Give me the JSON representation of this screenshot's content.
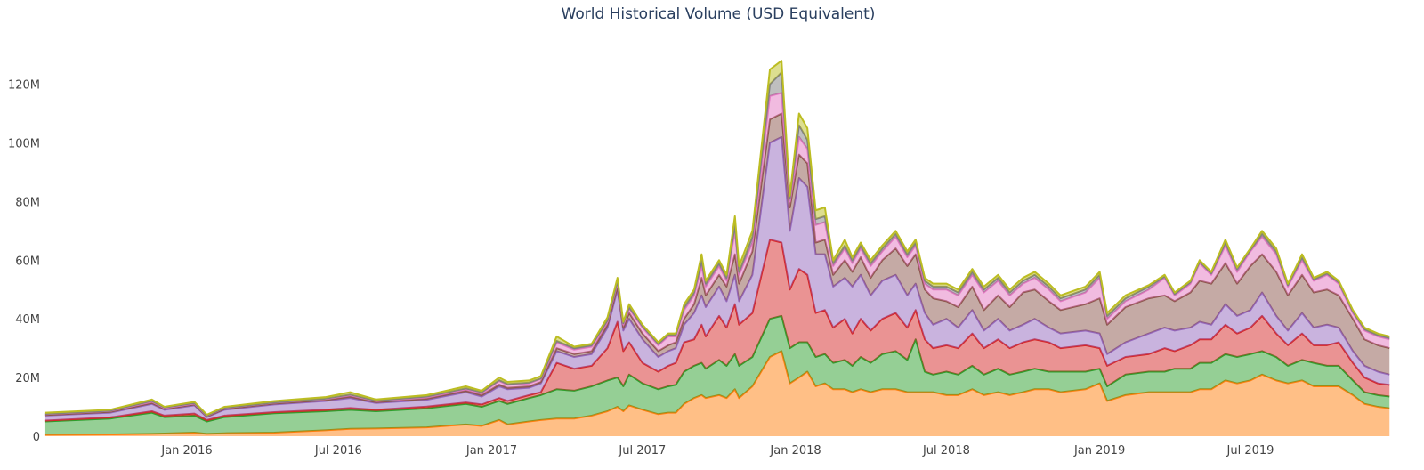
{
  "chart_data": {
    "type": "area",
    "stacked": true,
    "title": "World Historical Volume (USD Equivalent)",
    "xlabel": "",
    "ylabel": "",
    "xlim": [
      "2015-07-14",
      "2019-12-19"
    ],
    "ylim": [
      0,
      132000000
    ],
    "grid": false,
    "legend": "none",
    "y_ticks": [
      {
        "value": 0,
        "label": "0"
      },
      {
        "value": 20000000,
        "label": "20M"
      },
      {
        "value": 40000000,
        "label": "40M"
      },
      {
        "value": 60000000,
        "label": "60M"
      },
      {
        "value": 80000000,
        "label": "80M"
      },
      {
        "value": 100000000,
        "label": "100M"
      },
      {
        "value": 120000000,
        "label": "120M"
      }
    ],
    "x_ticks": [
      {
        "value": "2016-01-01",
        "label": "Jan 2016"
      },
      {
        "value": "2016-07-01",
        "label": "Jul 2016"
      },
      {
        "value": "2017-01-01",
        "label": "Jan 2017"
      },
      {
        "value": "2017-07-01",
        "label": "Jul 2017"
      },
      {
        "value": "2018-01-01",
        "label": "Jan 2018"
      },
      {
        "value": "2018-07-01",
        "label": "Jul 2018"
      },
      {
        "value": "2019-01-01",
        "label": "Jan 2019"
      },
      {
        "value": "2019-07-01",
        "label": "Jul 2019"
      }
    ],
    "unit": "millions USD",
    "series_colors": [
      "#ff7f0e",
      "#2ca02c",
      "#d62728",
      "#9467bd",
      "#8c564b",
      "#e377c2",
      "#7f7f7f",
      "#bcbd22"
    ],
    "series_order_note": "values per point listed bottom-to-top in stack order",
    "points": [
      {
        "x": "2015-07-15",
        "v": [
          0.5,
          4.5,
          0.3,
          1.7,
          0.2,
          0.3,
          0.1,
          0.4
        ]
      },
      {
        "x": "2015-10-01",
        "v": [
          0.6,
          5.4,
          0.4,
          1.6,
          0.3,
          0.3,
          0.1,
          0.3
        ]
      },
      {
        "x": "2015-11-20",
        "v": [
          0.8,
          7.2,
          0.5,
          2.5,
          0.3,
          0.5,
          0.2,
          0.5
        ]
      },
      {
        "x": "2015-12-05",
        "v": [
          0.9,
          5.6,
          0.5,
          2,
          0.3,
          0.3,
          0.2,
          0.2
        ]
      },
      {
        "x": "2016-01-10",
        "v": [
          1.2,
          5.8,
          0.7,
          2.8,
          0.3,
          0.3,
          0.2,
          0.4
        ]
      },
      {
        "x": "2016-01-25",
        "v": [
          0.8,
          4.2,
          0.5,
          1,
          0.2,
          0.2,
          0.1,
          0.3
        ]
      },
      {
        "x": "2016-02-15",
        "v": [
          1,
          5.5,
          0.5,
          2,
          0.3,
          0.3,
          0.1,
          0.3
        ]
      },
      {
        "x": "2016-04-15",
        "v": [
          1.2,
          6.6,
          0.4,
          2.6,
          0.3,
          0.3,
          0.1,
          0.5
        ]
      },
      {
        "x": "2016-06-15",
        "v": [
          2,
          6.5,
          0.5,
          3,
          0.3,
          0.4,
          0.1,
          0.5
        ]
      },
      {
        "x": "2016-07-15",
        "v": [
          2.5,
          6.5,
          0.6,
          3.4,
          0.5,
          0.5,
          0.2,
          0.8
        ]
      },
      {
        "x": "2016-08-15",
        "v": [
          2.6,
          5.9,
          0.5,
          2.3,
          0.3,
          0.4,
          0.1,
          0.4
        ]
      },
      {
        "x": "2016-10-15",
        "v": [
          3,
          6.5,
          0.6,
          2.3,
          0.4,
          0.5,
          0.2,
          0.5
        ]
      },
      {
        "x": "2016-12-01",
        "v": [
          4,
          7,
          0.5,
          3.5,
          0.5,
          0.5,
          0.3,
          0.7
        ]
      },
      {
        "x": "2016-12-20",
        "v": [
          3.5,
          6.5,
          0.8,
          2.7,
          0.5,
          0.7,
          0.3,
          0.5
        ]
      },
      {
        "x": "2017-01-10",
        "v": [
          5.5,
          6.5,
          1,
          4,
          0.6,
          1.2,
          0.3,
          0.9
        ]
      },
      {
        "x": "2017-01-20",
        "v": [
          4,
          7,
          1,
          4,
          0.5,
          1,
          0.3,
          0.7
        ]
      },
      {
        "x": "2017-02-15",
        "v": [
          5,
          8,
          1,
          2.5,
          0.5,
          1,
          0.3,
          0.7
        ]
      },
      {
        "x": "2017-03-01",
        "v": [
          5.5,
          8.5,
          1,
          3,
          0.5,
          1,
          0.2,
          0.8
        ]
      },
      {
        "x": "2017-03-20",
        "v": [
          6,
          10,
          9,
          4,
          1,
          2,
          0.5,
          1.5
        ]
      },
      {
        "x": "2017-04-10",
        "v": [
          6,
          9.5,
          7.5,
          4,
          1,
          1.5,
          0.5,
          0.5
        ]
      },
      {
        "x": "2017-05-01",
        "v": [
          7,
          10,
          7,
          4,
          1,
          1.5,
          0.5,
          0.5
        ]
      },
      {
        "x": "2017-05-20",
        "v": [
          8.5,
          10.5,
          11,
          7,
          1,
          1,
          0.5,
          1
        ]
      },
      {
        "x": "2017-06-01",
        "v": [
          10,
          10,
          19,
          11,
          1,
          1.5,
          0.5,
          1
        ]
      },
      {
        "x": "2017-06-08",
        "v": [
          8.5,
          8.5,
          12,
          7,
          1,
          1,
          0.5,
          0.5
        ]
      },
      {
        "x": "2017-06-15",
        "v": [
          10.5,
          10.5,
          11,
          8,
          2,
          1.5,
          0.5,
          1
        ]
      },
      {
        "x": "2017-07-01",
        "v": [
          9,
          9,
          7,
          8,
          2,
          2,
          0.5,
          0.5
        ]
      },
      {
        "x": "2017-07-20",
        "v": [
          7.5,
          8.5,
          6,
          5,
          2,
          2,
          0.5,
          0.5
        ]
      },
      {
        "x": "2017-08-01",
        "v": [
          8,
          9,
          7,
          5,
          2,
          3,
          0.5,
          0.5
        ]
      },
      {
        "x": "2017-08-10",
        "v": [
          8,
          9.5,
          7.5,
          5,
          2,
          2,
          0.5,
          0.5
        ]
      },
      {
        "x": "2017-08-20",
        "v": [
          11,
          11,
          10,
          6,
          2,
          3,
          1,
          1
        ]
      },
      {
        "x": "2017-09-01",
        "v": [
          13,
          11,
          9,
          9,
          3,
          3,
          1,
          1
        ]
      },
      {
        "x": "2017-09-10",
        "v": [
          14,
          11,
          13,
          10,
          6,
          4,
          2,
          2
        ]
      },
      {
        "x": "2017-09-15",
        "v": [
          13,
          10,
          11,
          10,
          4,
          3,
          1,
          1
        ]
      },
      {
        "x": "2017-10-01",
        "v": [
          14,
          12,
          15,
          10,
          4,
          3,
          1,
          1
        ]
      },
      {
        "x": "2017-10-10",
        "v": [
          13,
          11,
          13,
          9,
          5,
          2,
          1,
          1
        ]
      },
      {
        "x": "2017-10-20",
        "v": [
          16,
          12,
          17,
          10,
          7,
          8,
          2,
          3
        ]
      },
      {
        "x": "2017-10-25",
        "v": [
          13,
          11,
          14,
          8,
          6,
          3,
          1,
          2
        ]
      },
      {
        "x": "2017-11-10",
        "v": [
          17,
          10,
          15,
          13,
          8,
          3,
          2,
          2
        ]
      },
      {
        "x": "2017-12-01",
        "v": [
          27,
          13,
          27,
          33,
          8,
          8,
          4,
          5
        ]
      },
      {
        "x": "2017-12-15",
        "v": [
          29,
          12,
          25,
          36,
          8,
          7,
          7,
          4
        ]
      },
      {
        "x": "2017-12-25",
        "v": [
          18,
          12,
          20,
          20,
          8,
          2,
          1,
          1
        ]
      },
      {
        "x": "2018-01-05",
        "v": [
          20,
          12,
          25,
          31,
          8,
          6,
          4,
          4
        ]
      },
      {
        "x": "2018-01-15",
        "v": [
          22,
          10,
          23,
          30,
          8,
          5,
          3,
          4
        ]
      },
      {
        "x": "2018-01-25",
        "v": [
          17,
          10,
          15,
          20,
          4,
          6,
          2,
          3
        ]
      },
      {
        "x": "2018-02-05",
        "v": [
          18,
          10,
          15,
          19,
          5,
          6,
          2,
          3
        ]
      },
      {
        "x": "2018-02-15",
        "v": [
          16,
          9,
          12,
          14,
          4,
          3,
          1,
          1
        ]
      },
      {
        "x": "2018-03-01",
        "v": [
          16,
          10,
          14,
          14,
          6,
          4,
          1,
          2
        ]
      },
      {
        "x": "2018-03-10",
        "v": [
          15,
          9,
          11,
          16,
          5,
          3,
          1,
          1
        ]
      },
      {
        "x": "2018-03-20",
        "v": [
          16,
          11,
          13,
          15,
          6,
          3,
          1,
          1
        ]
      },
      {
        "x": "2018-04-01",
        "v": [
          15,
          10,
          11,
          12,
          6,
          4,
          1,
          1
        ]
      },
      {
        "x": "2018-04-15",
        "v": [
          16,
          12,
          12,
          13,
          7,
          3,
          1,
          1
        ]
      },
      {
        "x": "2018-05-01",
        "v": [
          16,
          13,
          13,
          13,
          9,
          4,
          1,
          1
        ]
      },
      {
        "x": "2018-05-15",
        "v": [
          15,
          11,
          11,
          11,
          10,
          3,
          1,
          1
        ]
      },
      {
        "x": "2018-05-25",
        "v": [
          15,
          18,
          10,
          9,
          10,
          3,
          1,
          1
        ]
      },
      {
        "x": "2018-06-05",
        "v": [
          15,
          7,
          11,
          9,
          8,
          2,
          1,
          1
        ]
      },
      {
        "x": "2018-06-15",
        "v": [
          15,
          6,
          9,
          8,
          9,
          3,
          1,
          1
        ]
      },
      {
        "x": "2018-07-01",
        "v": [
          14,
          8,
          9,
          9,
          6,
          4,
          1,
          1
        ]
      },
      {
        "x": "2018-07-15",
        "v": [
          14,
          7,
          9,
          7,
          7,
          4,
          1,
          1
        ]
      },
      {
        "x": "2018-08-01",
        "v": [
          16,
          8,
          11,
          8,
          8,
          4,
          1,
          1
        ]
      },
      {
        "x": "2018-08-15",
        "v": [
          14,
          7,
          9,
          6,
          7,
          6,
          1,
          1
        ]
      },
      {
        "x": "2018-09-01",
        "v": [
          15,
          8,
          10,
          7,
          8,
          5,
          1,
          1
        ]
      },
      {
        "x": "2018-09-15",
        "v": [
          14,
          7,
          9,
          6,
          8,
          4,
          1,
          1
        ]
      },
      {
        "x": "2018-10-01",
        "v": [
          15,
          7,
          10,
          6,
          11,
          3,
          1,
          1
        ]
      },
      {
        "x": "2018-10-15",
        "v": [
          16,
          7,
          10,
          7,
          10,
          4,
          1,
          1
        ]
      },
      {
        "x": "2018-11-01",
        "v": [
          16,
          6,
          10,
          5,
          9,
          4,
          1,
          1
        ]
      },
      {
        "x": "2018-11-15",
        "v": [
          15,
          7,
          8,
          5,
          8,
          3,
          1,
          1
        ]
      },
      {
        "x": "2018-12-15",
        "v": [
          16,
          6,
          9,
          5,
          9,
          4,
          1,
          1
        ]
      },
      {
        "x": "2019-01-01",
        "v": [
          18,
          5,
          7,
          5,
          12,
          7,
          1,
          1
        ]
      },
      {
        "x": "2019-01-10",
        "v": [
          12,
          5,
          7,
          4,
          10,
          2,
          1,
          1
        ]
      },
      {
        "x": "2019-02-01",
        "v": [
          14,
          7,
          6,
          5,
          12,
          2,
          1,
          1
        ]
      },
      {
        "x": "2019-03-01",
        "v": [
          15,
          7,
          6,
          7,
          12,
          3,
          1,
          0.5
        ]
      },
      {
        "x": "2019-03-20",
        "v": [
          15,
          7,
          8,
          7,
          11,
          6,
          0.5,
          0.5
        ]
      },
      {
        "x": "2019-04-01",
        "v": [
          15,
          8,
          6,
          7,
          10,
          2,
          0.5,
          0.5
        ]
      },
      {
        "x": "2019-04-20",
        "v": [
          15,
          8,
          8,
          6,
          12,
          3,
          0.5,
          0.5
        ]
      },
      {
        "x": "2019-05-01",
        "v": [
          16,
          9,
          8,
          6,
          14,
          6,
          0.5,
          0.5
        ]
      },
      {
        "x": "2019-05-15",
        "v": [
          16,
          9,
          8,
          5,
          14,
          3,
          0.5,
          0.5
        ]
      },
      {
        "x": "2019-06-01",
        "v": [
          19,
          9,
          10,
          7,
          14,
          6,
          1,
          1
        ]
      },
      {
        "x": "2019-06-15",
        "v": [
          18,
          9,
          8,
          6,
          11,
          4,
          1,
          0.5
        ]
      },
      {
        "x": "2019-07-01",
        "v": [
          19,
          9,
          9,
          6,
          15,
          5,
          0.5,
          0.5
        ]
      },
      {
        "x": "2019-07-15",
        "v": [
          21,
          8,
          12,
          8,
          13,
          6,
          1,
          1
        ]
      },
      {
        "x": "2019-08-01",
        "v": [
          19,
          8,
          8,
          6,
          15,
          6,
          1,
          1
        ]
      },
      {
        "x": "2019-08-15",
        "v": [
          18,
          6,
          7,
          5,
          12,
          3,
          0.5,
          0.5
        ]
      },
      {
        "x": "2019-09-01",
        "v": [
          19,
          7,
          9,
          7,
          13,
          5,
          1,
          1
        ]
      },
      {
        "x": "2019-09-15",
        "v": [
          17,
          8,
          6,
          6,
          12,
          4,
          0.5,
          0.5
        ]
      },
      {
        "x": "2019-10-01",
        "v": [
          17,
          7,
          7,
          7,
          12,
          5,
          0.5,
          0.5
        ]
      },
      {
        "x": "2019-10-15",
        "v": [
          17,
          7,
          8,
          5,
          11,
          4,
          0.5,
          0.5
        ]
      },
      {
        "x": "2019-11-01",
        "v": [
          14,
          5,
          6,
          4,
          11,
          2,
          0.5,
          0.5
        ]
      },
      {
        "x": "2019-11-15",
        "v": [
          11,
          4,
          5,
          4,
          9,
          3,
          0.5,
          0.5
        ]
      },
      {
        "x": "2019-12-01",
        "v": [
          10,
          4,
          4,
          4,
          9,
          3,
          0.5,
          0.5
        ]
      },
      {
        "x": "2019-12-15",
        "v": [
          9.5,
          4,
          4,
          3.5,
          9,
          3,
          0.5,
          0.5
        ]
      }
    ]
  }
}
